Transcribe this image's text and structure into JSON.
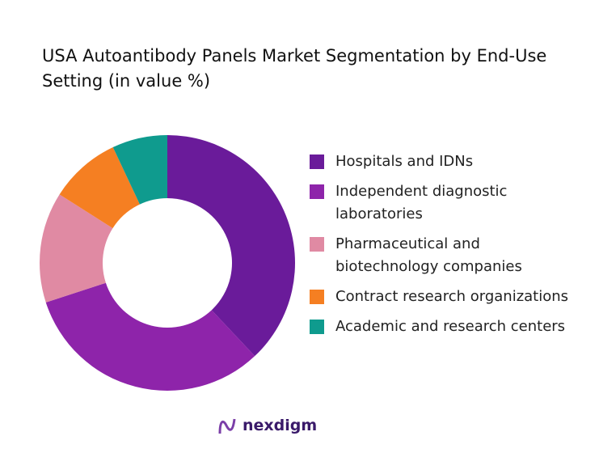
{
  "chart_data": {
    "type": "pie",
    "donut": true,
    "title": "USA Autoantibody Panels Market Segmentation by End-Use Setting (in value %)",
    "categories": [
      "Hospitals and IDNs",
      "Independent diagnostic laboratories",
      "Pharmaceutical and biotechnology companies",
      "Contract research organizations",
      "Academic and research centers"
    ],
    "values": [
      38,
      32,
      14,
      9,
      7
    ],
    "colors": [
      "#6a1b9a",
      "#8e24aa",
      "#e08aa3",
      "#f57f22",
      "#0f9b8e"
    ],
    "legend": "right"
  },
  "logo": "nexdigm"
}
